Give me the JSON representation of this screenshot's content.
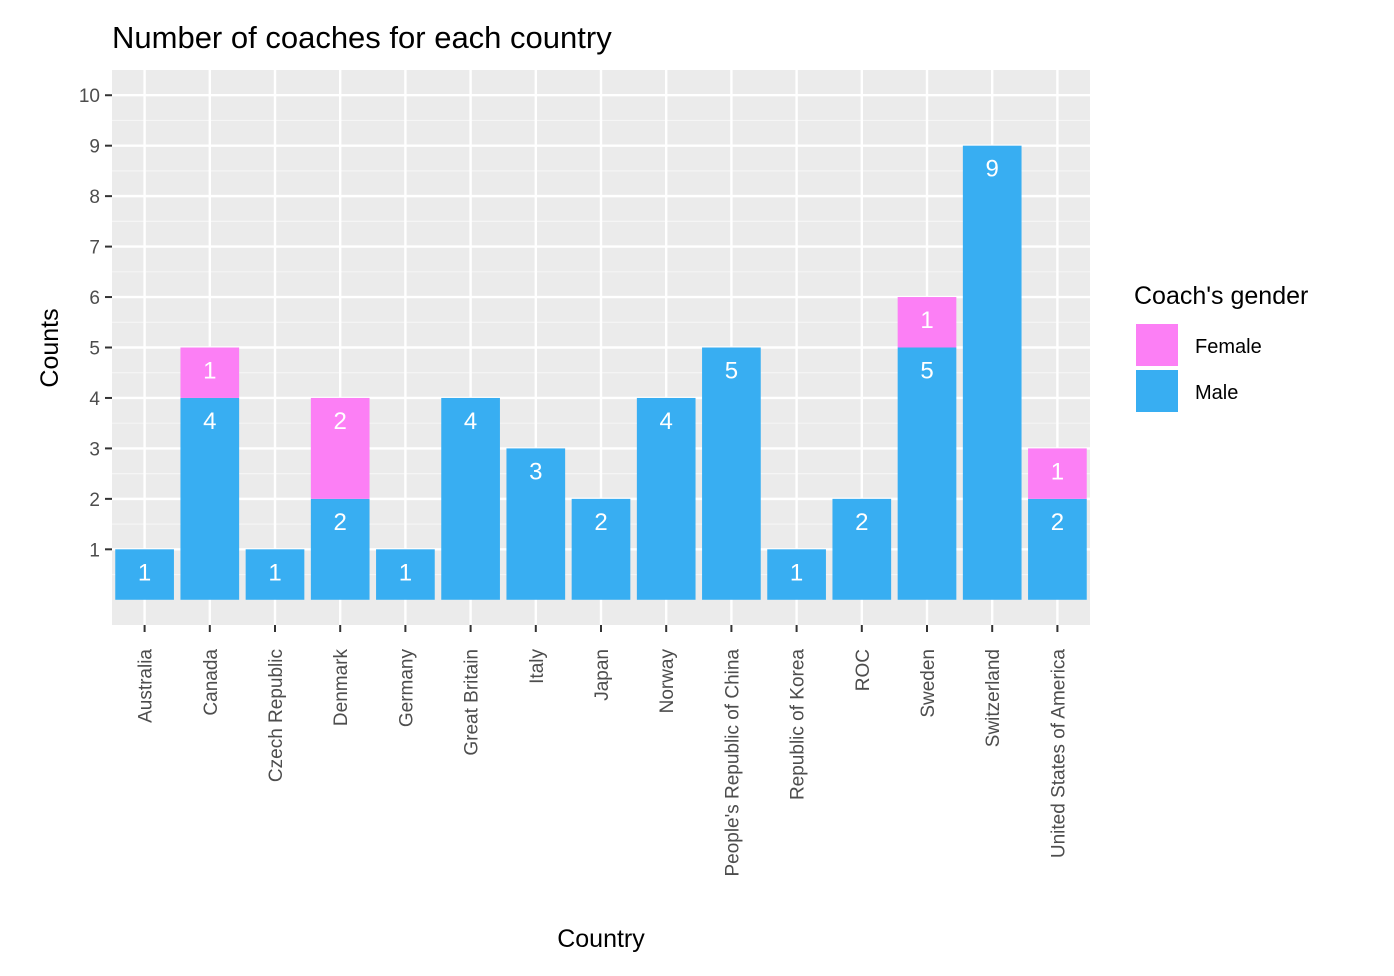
{
  "chart_data": {
    "type": "bar",
    "stacked": true,
    "title": "Number of coaches for each country",
    "xlabel": "Country",
    "ylabel": "Counts",
    "categories": [
      "Australia",
      "Canada",
      "Czech Republic",
      "Denmark",
      "Germany",
      "Great Britain",
      "Italy",
      "Japan",
      "Norway",
      "People's Republic of China",
      "Republic of Korea",
      "ROC",
      "Sweden",
      "Switzerland",
      "United States of America"
    ],
    "series": [
      {
        "name": "Male",
        "color": "#38aef2",
        "values": [
          1,
          4,
          1,
          2,
          1,
          4,
          3,
          2,
          4,
          5,
          1,
          2,
          5,
          9,
          2
        ]
      },
      {
        "name": "Female",
        "color": "#fc7ff5",
        "values": [
          0,
          1,
          0,
          2,
          0,
          0,
          0,
          0,
          0,
          0,
          0,
          0,
          1,
          0,
          1
        ]
      }
    ],
    "yticks": [
      1,
      2,
      3,
      4,
      5,
      6,
      7,
      8,
      9,
      10
    ],
    "ylim": [
      -0.5,
      10.5
    ],
    "grid": true,
    "legend": {
      "title": "Coach's gender",
      "entries": [
        {
          "label": "Female",
          "color": "#fc7ff5"
        },
        {
          "label": "Male",
          "color": "#38aef2"
        }
      ],
      "position": "right"
    }
  }
}
